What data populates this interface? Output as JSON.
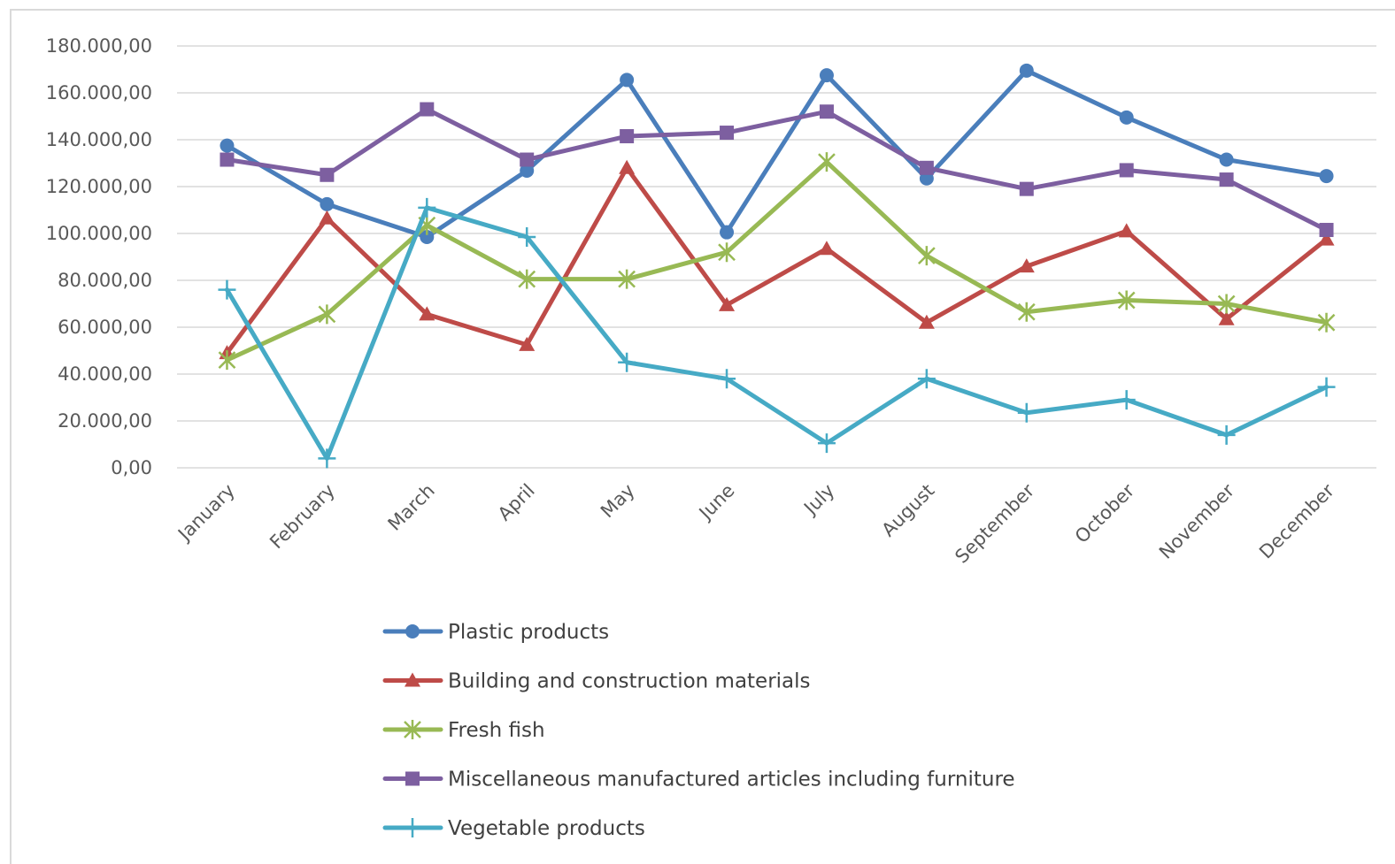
{
  "chart_data": {
    "type": "line",
    "title": "",
    "xlabel": "",
    "ylabel": "",
    "categories": [
      "January",
      "February",
      "March",
      "April",
      "May",
      "June",
      "July",
      "August",
      "September",
      "October",
      "November",
      "December"
    ],
    "ylim": [
      0,
      180000
    ],
    "yticks": [
      0,
      20000,
      40000,
      60000,
      80000,
      100000,
      120000,
      140000,
      160000,
      180000
    ],
    "ytick_labels": [
      "0,00",
      "20.000,00",
      "40.000,00",
      "60.000,00",
      "80.000,00",
      "100.000,00",
      "120.000,00",
      "140.000,00",
      "160.000,00",
      "180.000,00"
    ],
    "grid": true,
    "legend_position": "bottom",
    "series": [
      {
        "name": "Plastic products",
        "color": "#4a7ebb",
        "marker": "circle",
        "values": [
          137500,
          112500,
          98500,
          126800,
          165500,
          100500,
          167500,
          123500,
          169500,
          149500,
          131500,
          124500
        ]
      },
      {
        "name": "Building and construction materials",
        "color": "#be4b48",
        "marker": "triangle",
        "values": [
          49000,
          106500,
          65500,
          52500,
          128000,
          69500,
          93500,
          62000,
          86000,
          101000,
          63500,
          97500
        ]
      },
      {
        "name": "Fresh fish",
        "color": "#98b954",
        "marker": "star",
        "values": [
          46000,
          65500,
          103500,
          80500,
          80500,
          92000,
          130500,
          90500,
          66500,
          71500,
          70000,
          62000
        ]
      },
      {
        "name": "Miscellaneous manufactured articles including furniture",
        "color": "#7d5fa0",
        "marker": "square",
        "values": [
          131500,
          125000,
          153000,
          131500,
          141500,
          143000,
          152000,
          128000,
          119000,
          127000,
          123000,
          101500
        ]
      },
      {
        "name": "Vegetable products",
        "color": "#46aac5",
        "marker": "plus",
        "values": [
          76000,
          4000,
          111000,
          98500,
          45000,
          38000,
          10500,
          38000,
          23500,
          29000,
          14000,
          34500
        ]
      }
    ]
  }
}
